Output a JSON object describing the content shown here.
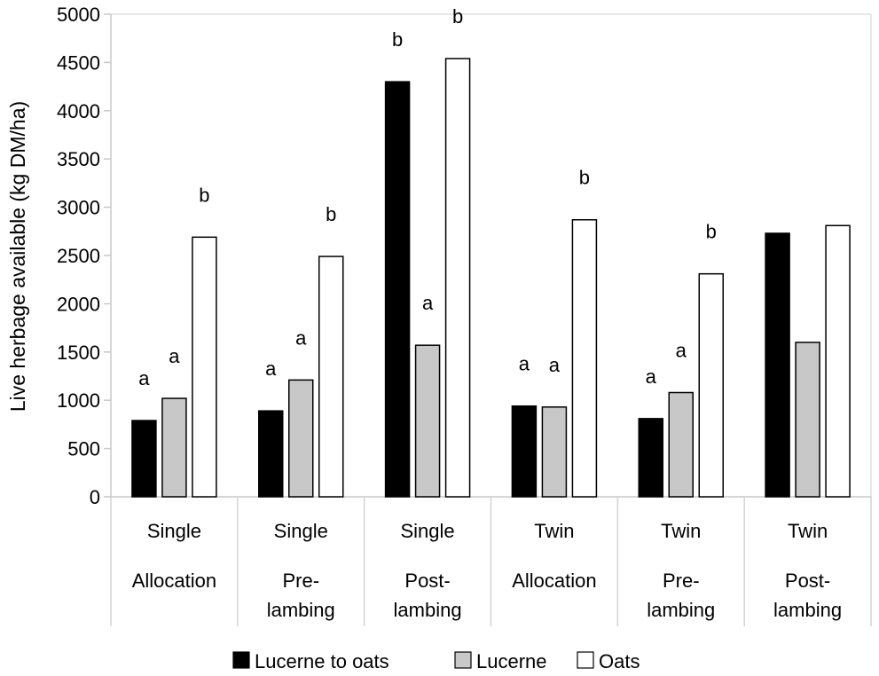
{
  "chart_data": {
    "type": "bar",
    "title": "",
    "xlabel": "",
    "ylabel": "Live herbage available (kg DM/ha)",
    "ylim": [
      0,
      5000
    ],
    "yticks": [
      0,
      500,
      1000,
      1500,
      2000,
      2500,
      3000,
      3500,
      4000,
      4500,
      5000
    ],
    "grid": false,
    "legend_position": "bottom",
    "categories": [
      [
        "Single",
        "Allocation"
      ],
      [
        "Single",
        "Pre-",
        "lambing"
      ],
      [
        "Single",
        "Post-",
        "lambing"
      ],
      [
        "Twin",
        "Allocation"
      ],
      [
        "Twin",
        "Pre-",
        "lambing"
      ],
      [
        "Twin",
        "Post-",
        "lambing"
      ]
    ],
    "series": [
      {
        "name": "Lucerne to oats",
        "color": "#000000",
        "values": [
          790,
          890,
          4300,
          940,
          810,
          2730
        ],
        "letters": [
          "a",
          "a",
          "b",
          "a",
          "a",
          ""
        ]
      },
      {
        "name": "Lucerne",
        "color": "#c8c8c8",
        "values": [
          1020,
          1210,
          1570,
          930,
          1080,
          1600
        ],
        "letters": [
          "a",
          "a",
          "a",
          "a",
          "a",
          ""
        ]
      },
      {
        "name": "Oats",
        "color": "#ffffff",
        "values": [
          2690,
          2490,
          4540,
          2870,
          2310,
          2810
        ],
        "letters": [
          "b",
          "b",
          "b",
          "b",
          "b",
          ""
        ]
      }
    ]
  }
}
